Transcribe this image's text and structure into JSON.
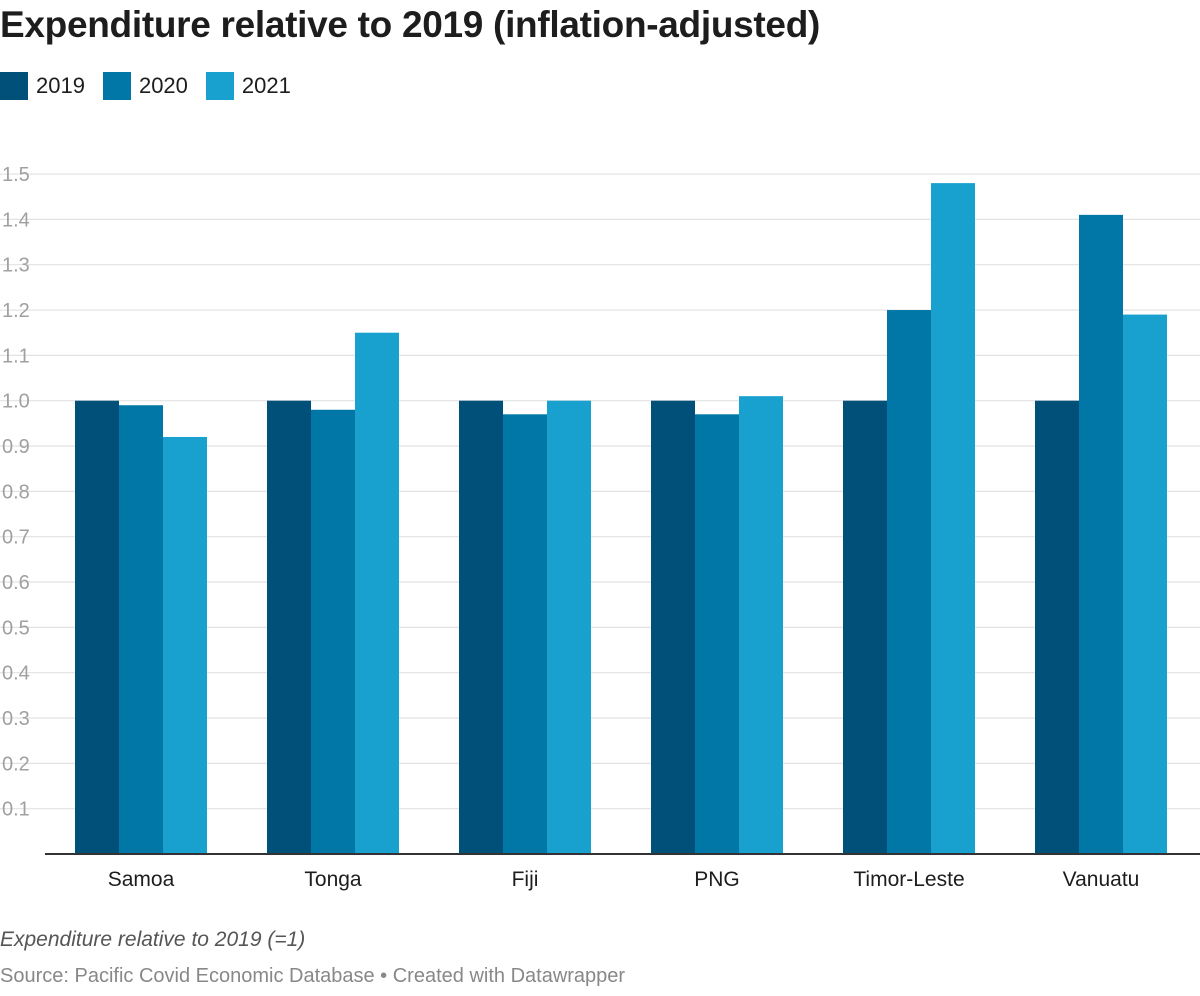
{
  "title": "Expenditure relative to 2019 (inflation-adjusted)",
  "note": "Expenditure relative to 2019 (=1)",
  "source": "Source: Pacific Covid Economic Database • Created with Datawrapper",
  "chart_data": {
    "type": "bar",
    "title": "Expenditure relative to 2019 (inflation-adjusted)",
    "categories": [
      "Samoa",
      "Tonga",
      "Fiji",
      "PNG",
      "Timor-Leste",
      "Vanuatu"
    ],
    "series": [
      {
        "name": "2019",
        "color": "#00507a",
        "values": [
          1.0,
          1.0,
          1.0,
          1.0,
          1.0,
          1.0
        ]
      },
      {
        "name": "2020",
        "color": "#0077a7",
        "values": [
          0.99,
          0.98,
          0.97,
          0.97,
          1.2,
          1.41
        ]
      },
      {
        "name": "2021",
        "color": "#18a1cf",
        "values": [
          0.92,
          1.15,
          1.0,
          1.01,
          1.48,
          1.19
        ]
      }
    ],
    "yticks": [
      "0.1",
      "0.2",
      "0.3",
      "0.4",
      "0.5",
      "0.6",
      "0.7",
      "0.8",
      "0.9",
      "1.0",
      "1.1",
      "1.2",
      "1.3",
      "1.4",
      "1.5"
    ],
    "ylim": [
      0,
      1.5
    ],
    "grid": true,
    "legend_position": "top-left"
  }
}
